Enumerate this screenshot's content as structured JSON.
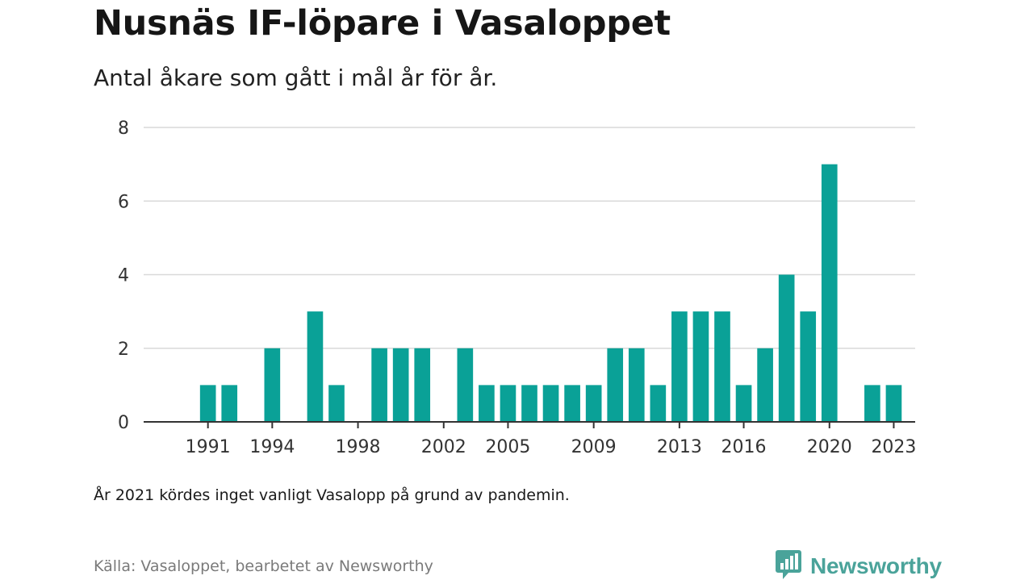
{
  "title": "Nusnäs IF-löpare i Vasaloppet",
  "subtitle": "Antal åkare som gått i mål år för år.",
  "note": "År 2021 kördes inget vanligt Vasalopp på grund av pandemin.",
  "source": "Källa: Vasaloppet, bearbetet av Newsworthy",
  "brand": {
    "name": "Newsworthy",
    "icon": "newsworthy-logo-icon",
    "color": "#4aa39a"
  },
  "colors": {
    "bar": "#0aa197",
    "grid": "#d9d9d9",
    "axis": "#333333"
  },
  "chart_data": {
    "type": "bar",
    "title": "",
    "xlabel": "",
    "ylabel": "",
    "ylim": [
      0,
      8
    ],
    "yticks": [
      0,
      2,
      4,
      6,
      8
    ],
    "xticks": [
      1991,
      1994,
      1998,
      2002,
      2005,
      2009,
      2013,
      2016,
      2020,
      2023
    ],
    "xlim": [
      1988,
      2024
    ],
    "grid": true,
    "categories": [
      1991,
      1992,
      1993,
      1994,
      1995,
      1996,
      1997,
      1998,
      1999,
      2000,
      2001,
      2002,
      2003,
      2004,
      2005,
      2006,
      2007,
      2008,
      2009,
      2010,
      2011,
      2012,
      2013,
      2014,
      2015,
      2016,
      2017,
      2018,
      2019,
      2020,
      2021,
      2022,
      2023
    ],
    "values": [
      1,
      1,
      0,
      2,
      0,
      3,
      1,
      0,
      2,
      2,
      2,
      0,
      2,
      1,
      1,
      1,
      1,
      1,
      1,
      2,
      2,
      1,
      3,
      3,
      3,
      1,
      2,
      4,
      3,
      7,
      0,
      1,
      1
    ]
  }
}
